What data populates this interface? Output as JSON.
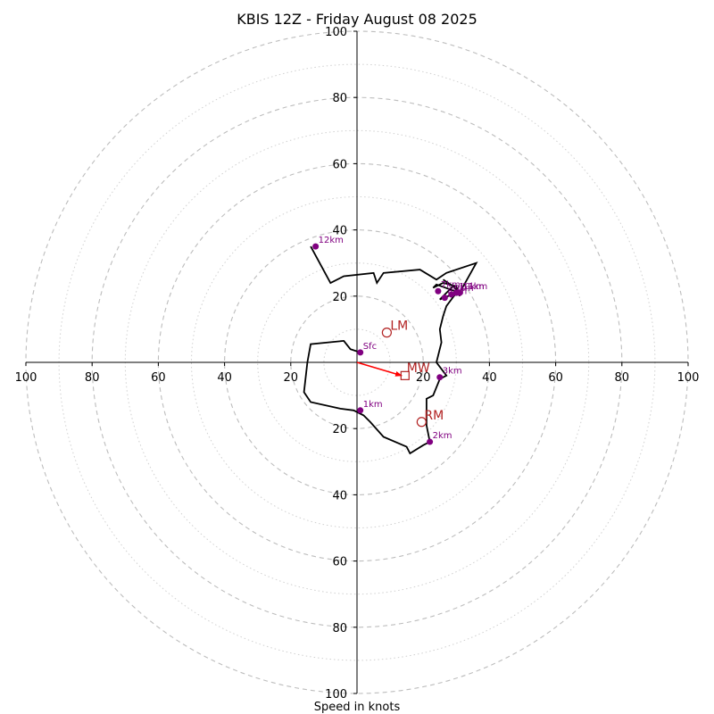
{
  "chart_data": {
    "type": "hodograph",
    "title": "KBIS 12Z - Friday August 08 2025",
    "xlabel": "Speed in knots",
    "xlim": [
      -100,
      100
    ],
    "ylim": [
      -100,
      100
    ],
    "rings_major": [
      20,
      40,
      60,
      80,
      100
    ],
    "rings_minor": [
      10,
      30,
      50,
      70,
      90
    ],
    "x_ticks": [
      {
        "value": -100,
        "label": "100"
      },
      {
        "value": -80,
        "label": "80"
      },
      {
        "value": -60,
        "label": "60"
      },
      {
        "value": -40,
        "label": "40"
      },
      {
        "value": -20,
        "label": "20"
      },
      {
        "value": 20,
        "label": "20"
      },
      {
        "value": 40,
        "label": "40"
      },
      {
        "value": 60,
        "label": "60"
      },
      {
        "value": 80,
        "label": "80"
      },
      {
        "value": 100,
        "label": "100"
      }
    ],
    "y_ticks": [
      {
        "value": 100,
        "label": "100"
      },
      {
        "value": 80,
        "label": "80"
      },
      {
        "value": 60,
        "label": "60"
      },
      {
        "value": 40,
        "label": "40"
      },
      {
        "value": 20,
        "label": "20"
      },
      {
        "value": -20,
        "label": "20"
      },
      {
        "value": -40,
        "label": "40"
      },
      {
        "value": -60,
        "label": "60"
      },
      {
        "value": -80,
        "label": "80"
      },
      {
        "value": -100,
        "label": "100"
      }
    ],
    "hodograph_line": [
      [
        1,
        3
      ],
      [
        -2,
        4
      ],
      [
        -4,
        6.5
      ],
      [
        -14,
        5.5
      ],
      [
        -15,
        0
      ],
      [
        -16,
        -9
      ],
      [
        -14,
        -12
      ],
      [
        -5,
        -14
      ],
      [
        -1,
        -14.5
      ],
      [
        2,
        -16
      ],
      [
        4,
        -18
      ],
      [
        8,
        -22.5
      ],
      [
        15,
        -25.5
      ],
      [
        16,
        -27.5
      ],
      [
        20,
        -25
      ],
      [
        22,
        -24
      ],
      [
        21,
        -19
      ],
      [
        21,
        -15
      ],
      [
        21,
        -11
      ],
      [
        23,
        -10
      ],
      [
        25,
        -5
      ],
      [
        27,
        -4
      ],
      [
        24,
        0
      ],
      [
        25.5,
        6
      ],
      [
        25,
        10
      ],
      [
        26,
        14
      ],
      [
        27,
        17
      ],
      [
        30,
        21
      ],
      [
        25,
        19
      ],
      [
        29,
        23
      ],
      [
        26,
        25
      ],
      [
        29,
        23
      ],
      [
        31,
        21
      ],
      [
        24,
        23.5
      ],
      [
        23,
        22.5
      ],
      [
        26,
        24
      ],
      [
        30,
        23
      ],
      [
        31,
        20
      ],
      [
        31,
        21
      ],
      [
        36,
        30
      ],
      [
        27,
        27
      ],
      [
        24,
        25
      ],
      [
        19,
        28
      ],
      [
        8,
        27
      ],
      [
        6,
        24
      ],
      [
        5,
        27
      ],
      [
        -4,
        26
      ],
      [
        -8,
        24
      ],
      [
        -14,
        35
      ]
    ],
    "height_markers": [
      {
        "label": "Sfc",
        "x": 1,
        "y": 3
      },
      {
        "label": "1km",
        "x": 1,
        "y": -14.5
      },
      {
        "label": "2km",
        "x": 22,
        "y": -24
      },
      {
        "label": "3km",
        "x": 25,
        "y": -4.5
      },
      {
        "label": "7km",
        "x": 24.5,
        "y": 21.5
      },
      {
        "label": "8km",
        "x": 26.5,
        "y": 19.5
      },
      {
        "label": "9km",
        "x": 28.5,
        "y": 20.5
      },
      {
        "label": "10km",
        "x": 30,
        "y": 21
      },
      {
        "label": "11km",
        "x": 31,
        "y": 21
      },
      {
        "label": "12km",
        "x": -12.5,
        "y": 35
      }
    ],
    "storm_motion": {
      "LM": {
        "label": "LM",
        "x": 9,
        "y": 9
      },
      "RM": {
        "label": "RM",
        "x": 19.5,
        "y": -18
      },
      "MW": {
        "label": "MW",
        "x": 14.5,
        "y": -4
      }
    },
    "mean_wind_vector": {
      "x": 13.5,
      "y": -4
    },
    "colors": {
      "line": "#000000",
      "markers": "#800080",
      "storm_motion": "#b22222",
      "vector": "#ff0000",
      "rings": "#bdbdbd"
    }
  }
}
